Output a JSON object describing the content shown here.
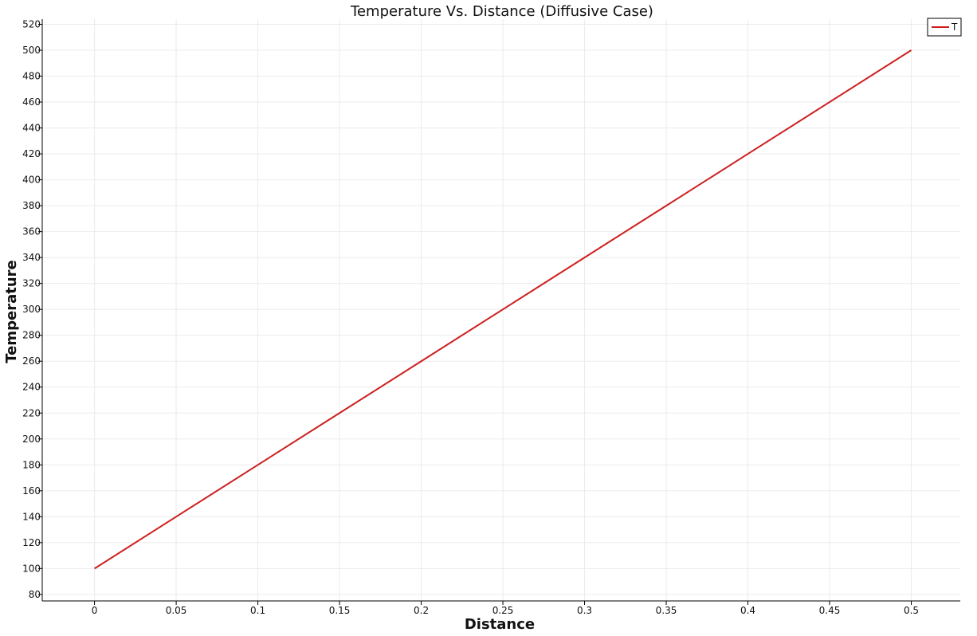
{
  "chart_data": {
    "type": "line",
    "title": "Temperature Vs. Distance (Diffusive Case)",
    "xlabel": "Distance",
    "ylabel": "Temperature",
    "xlim": [
      -0.032,
      0.53
    ],
    "ylim": [
      75,
      524
    ],
    "x_ticks": [
      0,
      0.05,
      0.1,
      0.15,
      0.2,
      0.25,
      0.3,
      0.35,
      0.4,
      0.45,
      0.5
    ],
    "x_tick_labels": [
      "0",
      "0.05",
      "0.1",
      "0.15",
      "0.2",
      "0.25",
      "0.3",
      "0.35",
      "0.4",
      "0.45",
      "0.5"
    ],
    "y_ticks": [
      80,
      100,
      120,
      140,
      160,
      180,
      200,
      220,
      240,
      260,
      280,
      300,
      320,
      340,
      360,
      380,
      400,
      420,
      440,
      460,
      480,
      500,
      520
    ],
    "y_tick_labels": [
      "80",
      "100",
      "120",
      "140",
      "160",
      "180",
      "200",
      "220",
      "240",
      "260",
      "280",
      "300",
      "320",
      "340",
      "360",
      "380",
      "400",
      "420",
      "440",
      "460",
      "480",
      "500",
      "520"
    ],
    "grid": true,
    "legend_position": "top-right",
    "series": [
      {
        "name": "T",
        "color": "#cc1f1f",
        "x": [
          0,
          0.05,
          0.1,
          0.15,
          0.2,
          0.25,
          0.3,
          0.35,
          0.4,
          0.45,
          0.5
        ],
        "y": [
          100,
          140,
          180,
          220,
          260,
          300,
          340,
          380,
          420,
          460,
          500
        ]
      }
    ]
  }
}
